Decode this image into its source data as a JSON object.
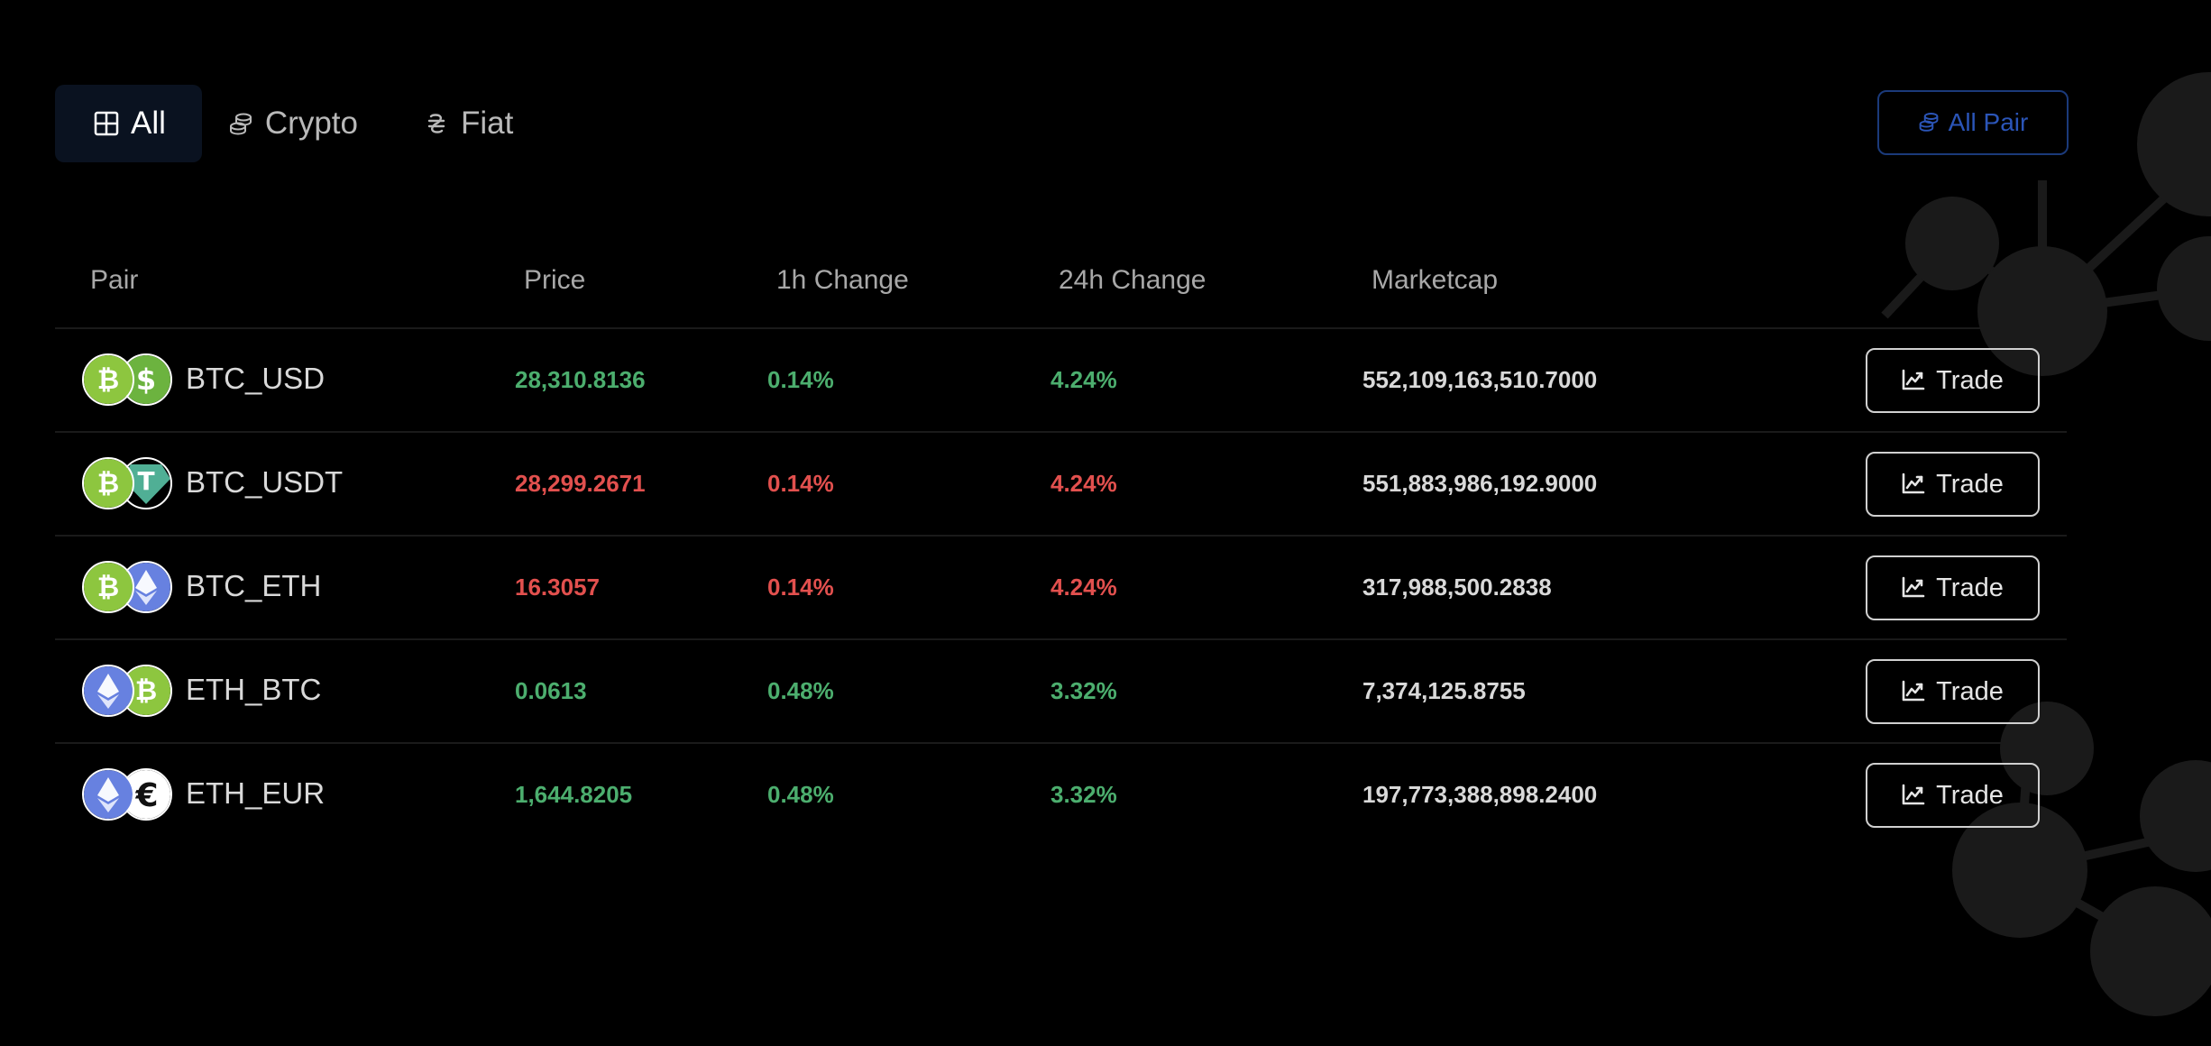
{
  "tabs": [
    {
      "label": "All",
      "icon": "grid-icon",
      "active": true
    },
    {
      "label": "Crypto",
      "icon": "coins-icon",
      "active": false
    },
    {
      "label": "Fiat",
      "icon": "hryvnia-icon",
      "active": false
    }
  ],
  "all_pair_button": {
    "label": "All Pair",
    "icon": "coins-icon"
  },
  "table": {
    "headers": {
      "pair": "Pair",
      "price": "Price",
      "change_1h": "1h Change",
      "change_24h": "24h Change",
      "marketcap": "Marketcap"
    },
    "rows": [
      {
        "pair": "BTC_USD",
        "base": "btc-icon",
        "quote": "usd-icon",
        "price": "28,310.8136",
        "change_1h": "0.14%",
        "change_24h": "4.24%",
        "marketcap": "552,109,163,510.7000",
        "trend": "up",
        "trade_label": "Trade"
      },
      {
        "pair": "BTC_USDT",
        "base": "btc-icon",
        "quote": "usdt-icon",
        "price": "28,299.2671",
        "change_1h": "0.14%",
        "change_24h": "4.24%",
        "marketcap": "551,883,986,192.9000",
        "trend": "down",
        "trade_label": "Trade"
      },
      {
        "pair": "BTC_ETH",
        "base": "btc-icon",
        "quote": "eth-icon",
        "price": "16.3057",
        "change_1h": "0.14%",
        "change_24h": "4.24%",
        "marketcap": "317,988,500.2838",
        "trend": "down",
        "trade_label": "Trade"
      },
      {
        "pair": "ETH_BTC",
        "base": "eth-icon",
        "quote": "btc-icon",
        "price": "0.0613",
        "change_1h": "0.48%",
        "change_24h": "3.32%",
        "marketcap": "7,374,125.8755",
        "trend": "up",
        "trade_label": "Trade"
      },
      {
        "pair": "ETH_EUR",
        "base": "eth-icon",
        "quote": "eur-icon",
        "price": "1,644.8205",
        "change_1h": "0.48%",
        "change_24h": "3.32%",
        "marketcap": "197,773,388,898.2400",
        "trend": "up",
        "trade_label": "Trade"
      }
    ]
  },
  "colors": {
    "background": "#000000",
    "positive": "#4cae6e",
    "negative": "#e2504e",
    "active_tab_bg": "#0a1220",
    "accent_blue": "#2b55b8"
  }
}
